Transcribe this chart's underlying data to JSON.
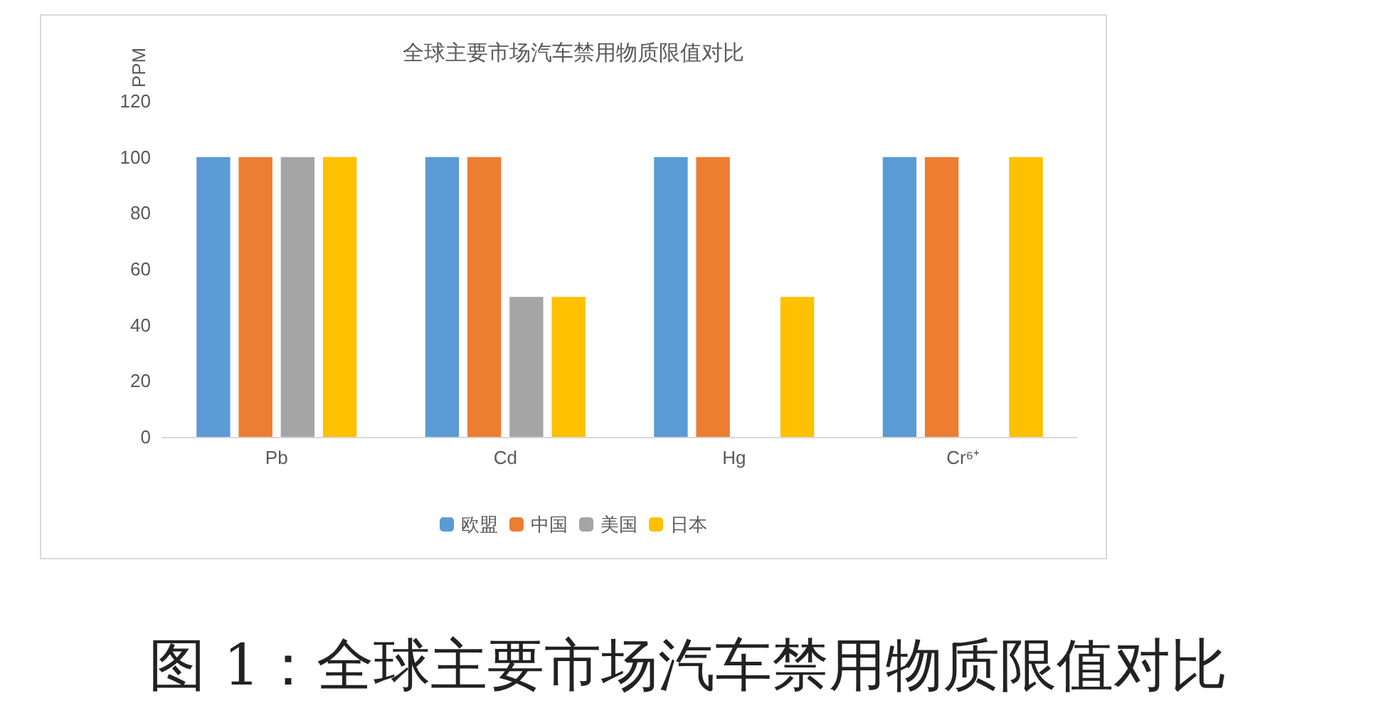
{
  "chart_data": {
    "type": "bar",
    "title": "全球主要市场汽车禁用物质限值对比",
    "ylabel": "PPM",
    "categories": [
      "Pb",
      "Cd",
      "Hg",
      "Cr⁶⁺"
    ],
    "series": [
      {
        "name": "欧盟",
        "color": "#5b9bd5",
        "values": [
          100,
          100,
          100,
          100
        ]
      },
      {
        "name": "中国",
        "color": "#ed7d31",
        "values": [
          100,
          100,
          100,
          100
        ]
      },
      {
        "name": "美国",
        "color": "#a5a5a5",
        "values": [
          100,
          50,
          null,
          null
        ]
      },
      {
        "name": "日本",
        "color": "#ffc000",
        "values": [
          100,
          50,
          50,
          100
        ]
      }
    ],
    "ylim": [
      0,
      120
    ],
    "yticks": [
      0,
      20,
      40,
      60,
      80,
      100,
      120
    ],
    "grid": false,
    "legend": "bottom",
    "annotations": [
      "图 1：全球主要市场汽车禁用物质限值对比"
    ]
  }
}
